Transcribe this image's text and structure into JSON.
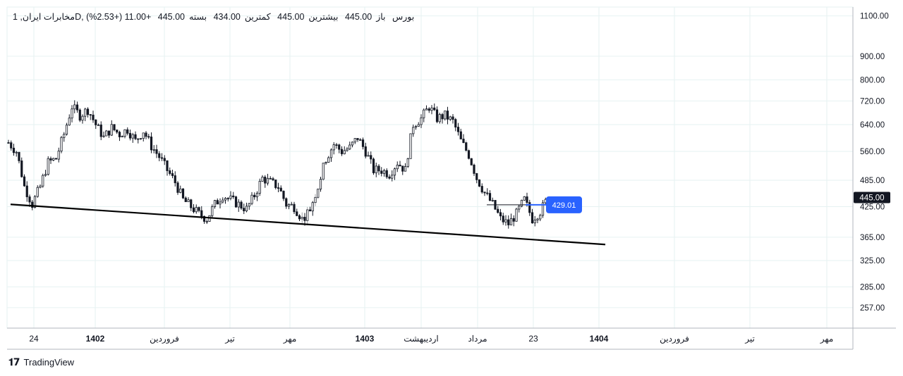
{
  "legend": {
    "symbol": "مخابرات ایران, 1D, بورس",
    "open_label": "باز",
    "open_value": "445.00",
    "high_label": "بیشترین",
    "high_value": "445.00",
    "low_label": "کمترین",
    "low_value": "434.00",
    "close_label": "بسته",
    "close_value": "445.00",
    "change": "+11.00 (+2.53%)"
  },
  "brand": "TradingView",
  "colors": {
    "grid": "#e6f2f2",
    "axis": "#b2b5be",
    "candle": "#131722",
    "trendline": "#000000",
    "price_tag_bg": "#131722",
    "marker_bg": "#2962ff"
  },
  "chart_data": {
    "type": "candlestick",
    "y_ticks": [
      "1100.00",
      "900.00",
      "800.00",
      "720.00",
      "640.00",
      "560.00",
      "485.00",
      "425.00",
      "365.00",
      "325.00",
      "285.00",
      "257.00"
    ],
    "y_tick_values": [
      1100,
      900,
      800,
      720,
      640,
      560,
      485,
      425,
      365,
      325,
      285,
      257
    ],
    "y_scale": "log",
    "ylim": [
      232,
      1150
    ],
    "x_ticks": [
      {
        "label": "24",
        "bold": false
      },
      {
        "label": "1402",
        "bold": true
      },
      {
        "label": "فروردین",
        "bold": false
      },
      {
        "label": "تیر",
        "bold": false
      },
      {
        "label": "مهر",
        "bold": false
      },
      {
        "label": "1403",
        "bold": true
      },
      {
        "label": "اردیبهشت",
        "bold": false
      },
      {
        "label": "مرداد",
        "bold": false
      },
      {
        "label": "23",
        "bold": false
      },
      {
        "label": "1404",
        "bold": true
      },
      {
        "label": "فروردین",
        "bold": false
      },
      {
        "label": "تیر",
        "bold": false
      },
      {
        "label": "مهر",
        "bold": false
      }
    ],
    "last_price": "445.00",
    "last_price_value": 445,
    "marker_label": "429.01",
    "marker_value": 429.01,
    "close_path": [
      [
        0,
        585
      ],
      [
        3,
        560
      ],
      [
        6,
        470
      ],
      [
        9,
        430
      ],
      [
        12,
        470
      ],
      [
        15,
        530
      ],
      [
        18,
        540
      ],
      [
        21,
        610
      ],
      [
        24,
        700
      ],
      [
        27,
        670
      ],
      [
        30,
        690
      ],
      [
        33,
        640
      ],
      [
        36,
        600
      ],
      [
        39,
        630
      ],
      [
        42,
        610
      ],
      [
        45,
        625
      ],
      [
        48,
        590
      ],
      [
        51,
        620
      ],
      [
        54,
        575
      ],
      [
        57,
        545
      ],
      [
        60,
        510
      ],
      [
        63,
        480
      ],
      [
        66,
        440
      ],
      [
        69,
        425
      ],
      [
        72,
        410
      ],
      [
        75,
        400
      ],
      [
        78,
        430
      ],
      [
        81,
        450
      ],
      [
        84,
        440
      ],
      [
        87,
        430
      ],
      [
        90,
        420
      ],
      [
        93,
        450
      ],
      [
        96,
        490
      ],
      [
        99,
        480
      ],
      [
        102,
        470
      ],
      [
        105,
        430
      ],
      [
        108,
        425
      ],
      [
        111,
        400
      ],
      [
        114,
        420
      ],
      [
        117,
        470
      ],
      [
        120,
        540
      ],
      [
        123,
        580
      ],
      [
        126,
        560
      ],
      [
        129,
        570
      ],
      [
        132,
        600
      ],
      [
        135,
        560
      ],
      [
        138,
        510
      ],
      [
        141,
        510
      ],
      [
        144,
        500
      ],
      [
        147,
        530
      ],
      [
        150,
        510
      ],
      [
        153,
        640
      ],
      [
        156,
        660
      ],
      [
        159,
        700
      ],
      [
        162,
        660
      ],
      [
        165,
        670
      ],
      [
        168,
        650
      ],
      [
        171,
        590
      ],
      [
        174,
        550
      ],
      [
        177,
        490
      ],
      [
        180,
        455
      ],
      [
        183,
        430
      ],
      [
        186,
        400
      ],
      [
        189,
        390
      ],
      [
        192,
        410
      ],
      [
        195,
        440
      ],
      [
        198,
        400
      ],
      [
        201,
        415
      ],
      [
        204,
        445
      ]
    ],
    "trendline": {
      "from": [
        1,
        430
      ],
      "to": [
        225,
        352
      ]
    }
  }
}
